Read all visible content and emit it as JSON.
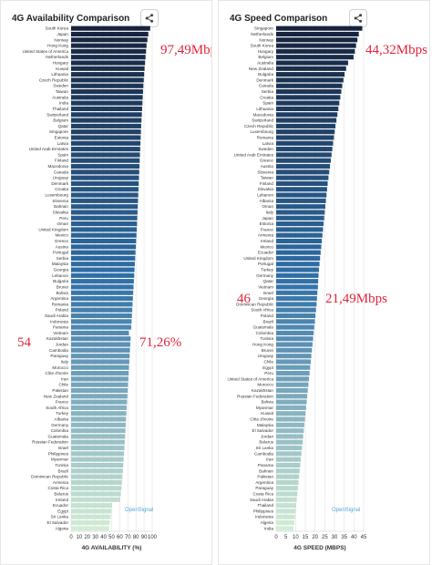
{
  "colors": {
    "accent_red": "#e0243c",
    "bar_dark": "#16233d",
    "bar_mid": "#2f6fa7",
    "bar_light": "#d3ecd6",
    "watermark": "#52a8d6"
  },
  "icons": {
    "share": "share-icon"
  },
  "annotations_left": {
    "top_value": "97,49Mbps",
    "rank": "54",
    "rank_value": "71,26%"
  },
  "annotations_right": {
    "top_value": "44,32Mbps",
    "rank": "46",
    "rank_value": "21,49Mbps"
  },
  "chart_data": [
    {
      "type": "bar",
      "orientation": "horizontal",
      "title": "4G Availability Comparison",
      "xlabel": "4G AVAILABILITY (%)",
      "xlim": [
        0,
        100
      ],
      "xticks": [
        0,
        10,
        20,
        30,
        40,
        50,
        60,
        70,
        80,
        90,
        100
      ],
      "watermark": "OpenSignal",
      "categories": [
        "South Korea",
        "Japan",
        "Norway",
        "Hong Kong",
        "United States of America",
        "Netherlands",
        "Hungary",
        "Kuwait",
        "Lithuania",
        "Czech Republic",
        "Sweden",
        "Taiwan",
        "Australia",
        "India",
        "Thailand",
        "Switzerland",
        "Belgium",
        "Qatar",
        "Singapore",
        "Estonia",
        "Latvia",
        "United Arab Emirates",
        "Spain",
        "Finland",
        "Macedonia",
        "Canada",
        "Uruguay",
        "Denmark",
        "Croatia",
        "Luxembourg",
        "Slovenia",
        "Bahrain",
        "Slovakia",
        "Peru",
        "Oman",
        "United Kingdom",
        "Mexico",
        "Greece",
        "Austria",
        "Portugal",
        "Serbia",
        "Malaysia",
        "Georgia",
        "Lebanon",
        "Bulgaria",
        "Brunei",
        "Bolivia",
        "Argentina",
        "Romania",
        "Poland",
        "Saudi Arabia",
        "Indonesia",
        "Panama",
        "Vietnam",
        "Kazakhstan",
        "Jordan",
        "Cambodia",
        "Paraguay",
        "Italy",
        "Morocco",
        "Côte d'Ivoire",
        "Iran",
        "Chile",
        "Pakistan",
        "New Zealand",
        "France",
        "South Africa",
        "Turkey",
        "Albania",
        "Germany",
        "Colombia",
        "Guatemala",
        "Russian Federation",
        "Israel",
        "Philippines",
        "Myanmar",
        "Tunisia",
        "Brazil",
        "Dominican Republic",
        "Armenia",
        "Costa Rica",
        "Belarus",
        "Ireland",
        "Ecuador",
        "Egypt",
        "Sri Lanka",
        "El Salvador",
        "Algeria"
      ],
      "values": [
        97.5,
        95.2,
        94.1,
        93.0,
        92.4,
        91.8,
        91.2,
        90.6,
        90.1,
        89.6,
        89.1,
        88.7,
        88.3,
        88.0,
        87.6,
        87.2,
        86.8,
        86.4,
        86.1,
        85.8,
        85.5,
        85.2,
        84.9,
        84.6,
        84.3,
        84.0,
        83.7,
        83.4,
        83.1,
        82.8,
        82.5,
        82.2,
        81.9,
        81.6,
        81.3,
        81.0,
        80.6,
        80.2,
        79.8,
        79.4,
        79.0,
        78.6,
        78.2,
        77.8,
        77.4,
        77.0,
        76.6,
        76.2,
        75.8,
        75.4,
        75.0,
        74.6,
        74.2,
        71.26,
        73.4,
        73.0,
        72.6,
        72.2,
        71.8,
        71.4,
        71.0,
        70.6,
        70.2,
        69.8,
        69.4,
        69.0,
        68.6,
        68.2,
        67.8,
        67.4,
        67.0,
        66.6,
        66.2,
        65.8,
        65.3,
        64.8,
        64.3,
        63.8,
        63.3,
        62.7,
        62.1,
        61.4,
        60.6,
        50.5,
        49.6,
        48.7,
        47.8,
        46.9
      ]
    },
    {
      "type": "bar",
      "orientation": "horizontal",
      "title": "4G Speed Comparison",
      "xlabel": "4G SPEED (MBPS)",
      "xlim": [
        0,
        45
      ],
      "xticks": [
        0,
        5,
        10,
        15,
        20,
        25,
        30,
        35,
        40,
        45
      ],
      "watermark": "OpenSignal",
      "categories": [
        "Singapore",
        "Netherlands",
        "Norway",
        "South Korea",
        "Hungary",
        "Belgium",
        "Australia",
        "New Zealand",
        "Bulgaria",
        "Denmark",
        "Canada",
        "Serbia",
        "Croatia",
        "Spain",
        "Lithuania",
        "Macedonia",
        "Switzerland",
        "Czech Republic",
        "Luxembourg",
        "Romania",
        "Latvia",
        "Sweden",
        "United Arab Emirates",
        "Greece",
        "Austria",
        "Slovenia",
        "Taiwan",
        "Finland",
        "Slovakia",
        "Lebanon",
        "Albania",
        "Oman",
        "Italy",
        "Japan",
        "Estonia",
        "France",
        "Armenia",
        "Ireland",
        "Mexico",
        "Ecuador",
        "United Kingdom",
        "Portugal",
        "Turkey",
        "Germany",
        "Qatar",
        "Vietnam",
        "Israel",
        "Georgia",
        "Dominican Republic",
        "South Africa",
        "Poland",
        "Brazil",
        "Guatemala",
        "Colombia",
        "Tunisia",
        "Hong Kong",
        "Brunei",
        "Uruguay",
        "Chile",
        "Egypt",
        "Peru",
        "United States of America",
        "Morocco",
        "Kazakhstan",
        "Russian Federation",
        "Bolivia",
        "Myanmar",
        "Kuwait",
        "Côte d'Ivoire",
        "Malaysia",
        "El Salvador",
        "Jordan",
        "Belarus",
        "Sri Lanka",
        "Cambodia",
        "Iran",
        "Panama",
        "Bahrain",
        "Pakistan",
        "Argentina",
        "Paraguay",
        "Costa Rica",
        "Saudi Arabia",
        "Thailand",
        "Philippines",
        "Indonesia",
        "Algeria",
        "India"
      ],
      "values": [
        44.3,
        42.5,
        41.8,
        41.1,
        40.5,
        39.8,
        37.0,
        36.0,
        35.2,
        34.6,
        34.0,
        33.5,
        33.0,
        32.5,
        32.0,
        31.5,
        31.0,
        30.5,
        30.1,
        29.7,
        29.3,
        28.9,
        28.5,
        28.1,
        27.7,
        27.3,
        26.9,
        26.5,
        26.2,
        25.9,
        25.6,
        25.3,
        25.0,
        24.7,
        24.4,
        24.1,
        23.8,
        23.5,
        23.2,
        22.9,
        22.6,
        22.3,
        22.0,
        21.8,
        21.6,
        21.49,
        21.2,
        21.0,
        20.8,
        20.5,
        20.2,
        19.9,
        19.6,
        19.3,
        19.0,
        18.7,
        18.4,
        18.1,
        17.8,
        17.5,
        17.2,
        16.9,
        16.6,
        16.3,
        16.0,
        15.7,
        15.4,
        15.1,
        14.8,
        14.5,
        14.2,
        13.9,
        13.6,
        13.3,
        13.0,
        12.7,
        12.4,
        12.1,
        11.8,
        11.5,
        11.2,
        10.9,
        10.6,
        10.3,
        10.0,
        9.7,
        9.4,
        8.9
      ]
    }
  ]
}
